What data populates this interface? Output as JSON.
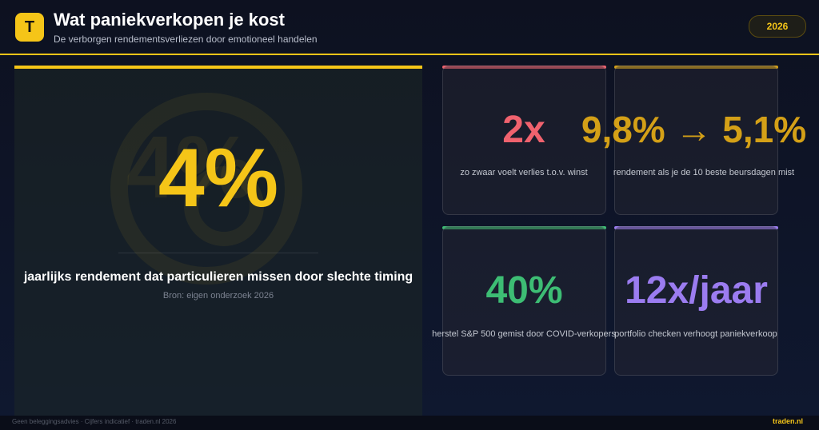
{
  "header": {
    "logo": "T",
    "title": "Wat paniekverkopen je kost",
    "subtitle": "De verborgen rendementsverliezen door emotioneel handelen",
    "badge": "2026"
  },
  "hero": {
    "stat": "4%",
    "label": "jaarlijks rendement dat particulieren missen door slechte timing",
    "source": "Bron: eigen onderzoek 2026"
  },
  "cards": [
    {
      "stat": "2x",
      "label": "zo zwaar voelt verlies t.o.v. winst"
    },
    {
      "stat": "9,8% → 5,1%",
      "label": "rendement als je de 10 beste beursdagen mist"
    },
    {
      "stat": "40%",
      "label": "herstel S&P 500 gemist door COVID-verkopers"
    },
    {
      "stat": "12x/jaar",
      "label": "portfolio checken verhoogt paniekverkoop"
    }
  ],
  "footer": {
    "disclaimer": "Geen beleggingsadvies · Cijfers indicatief · traden.nl 2026",
    "brand": "traden.nl"
  }
}
